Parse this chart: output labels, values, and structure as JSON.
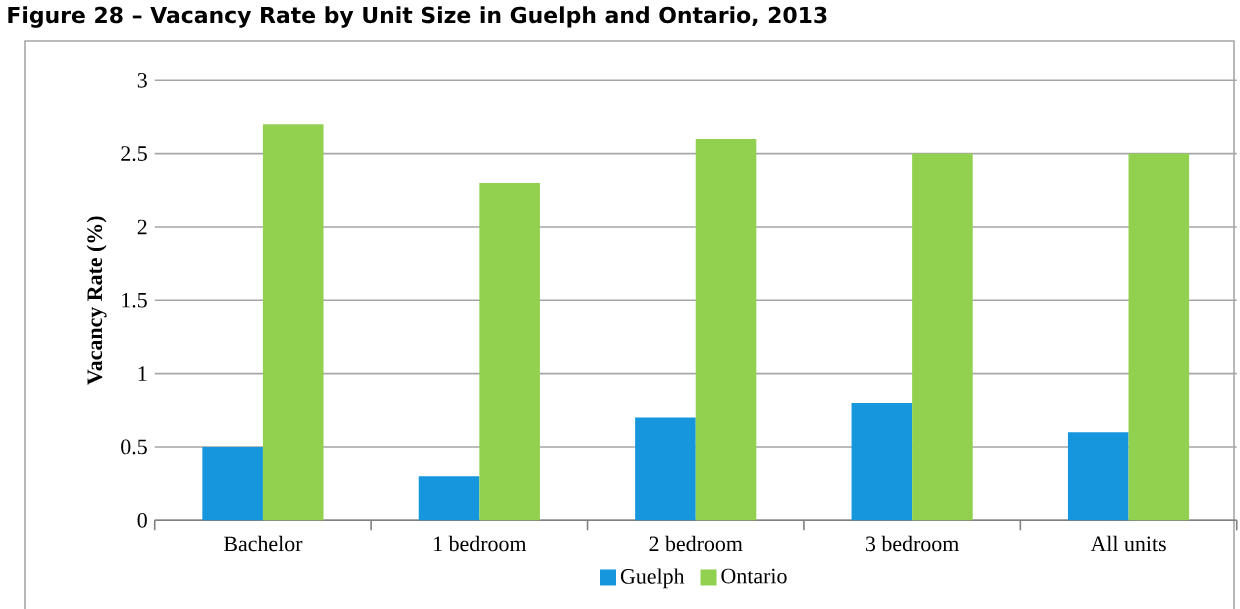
{
  "chart_data": {
    "type": "bar",
    "title": "Figure 28 – Vacancy Rate by Unit Size in Guelph and Ontario, 2013",
    "ylabel": "Vacancy Rate (%)",
    "categories": [
      "Bachelor",
      "1 bedroom",
      "2 bedroom",
      "3 bedroom",
      "All units"
    ],
    "series": [
      {
        "name": "Guelph",
        "color": "#1696dd",
        "values": [
          0.5,
          0.3,
          0.7,
          0.8,
          0.6
        ]
      },
      {
        "name": "Ontario",
        "color": "#92d050",
        "values": [
          2.7,
          2.3,
          2.6,
          2.5,
          2.5
        ]
      }
    ],
    "ylim": [
      0,
      3
    ],
    "yticks": [
      0,
      0.5,
      1,
      1.5,
      2,
      2.5,
      3
    ],
    "grid": "y",
    "legend": "bottom"
  }
}
